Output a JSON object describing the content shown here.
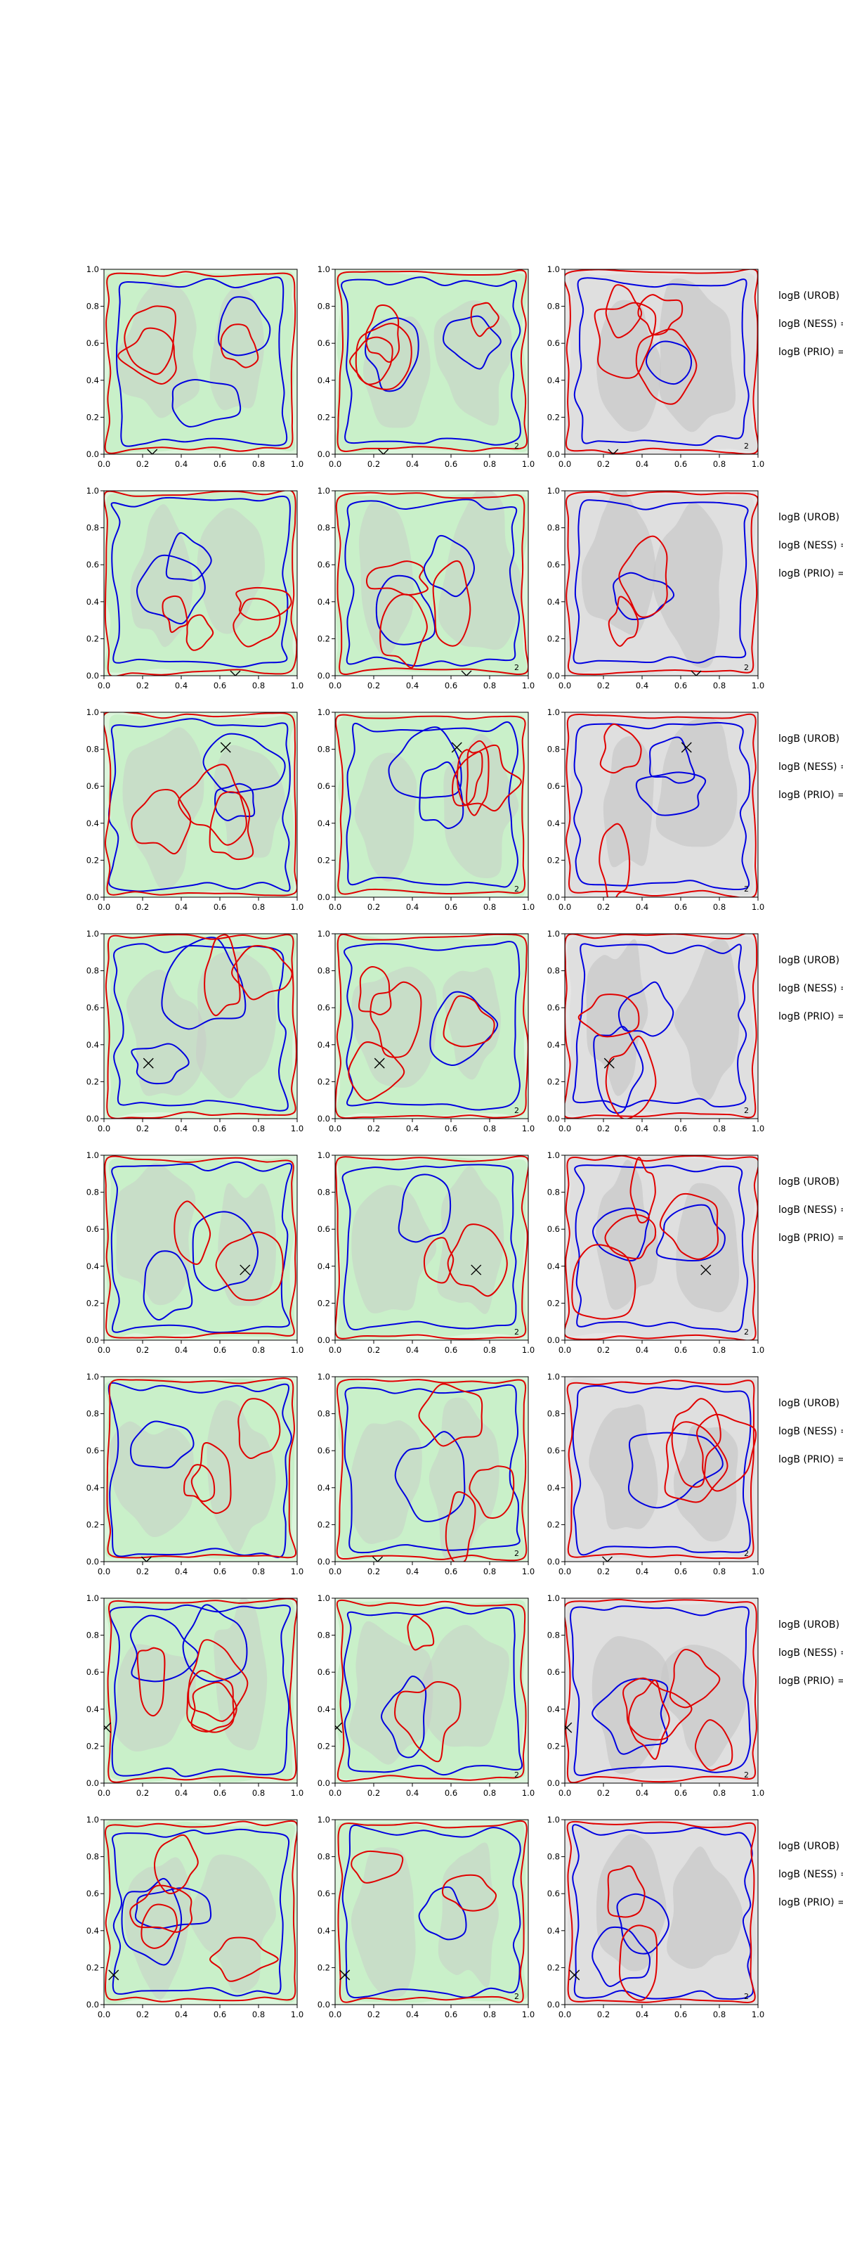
{
  "chart_data": {
    "type": "contour-grid",
    "rows": 8,
    "cols": 3,
    "xlim": [
      0.0,
      1.0
    ],
    "ylim": [
      0.0,
      1.0
    ],
    "xticks": [
      "0.0",
      "0.2",
      "0.4",
      "0.6",
      "0.8",
      "1.0"
    ],
    "yticks": [
      "0.0",
      "0.2",
      "0.4",
      "0.6",
      "0.8",
      "1.0"
    ],
    "row_labels": [
      "logB (UROB) =",
      "logB (NESS) =",
      "logB (PRIO) ="
    ],
    "panel_numbers": [
      "",
      "2",
      "2"
    ],
    "markers": [
      {
        "row": 1,
        "x": 0.25,
        "y": 0.0
      },
      {
        "row": 2,
        "x": 0.68,
        "y": 0.0
      },
      {
        "row": 3,
        "x": 0.63,
        "y": 0.81
      },
      {
        "row": 4,
        "x": 0.23,
        "y": 0.3
      },
      {
        "row": 5,
        "x": 0.73,
        "y": 0.38
      },
      {
        "row": 6,
        "x": 0.22,
        "y": 0.0
      },
      {
        "row": 7,
        "x": 0.01,
        "y": 0.3
      },
      {
        "row": 8,
        "x": 0.05,
        "y": 0.16
      }
    ],
    "colors": {
      "green_fill": "#c6efc6",
      "light_green_fill": "#dcf5dc",
      "grey_fill": "#c8c8c8",
      "light_grey_fill": "#e6e6e6",
      "red_contour": "#e00000",
      "blue_contour": "#0000e0"
    }
  }
}
